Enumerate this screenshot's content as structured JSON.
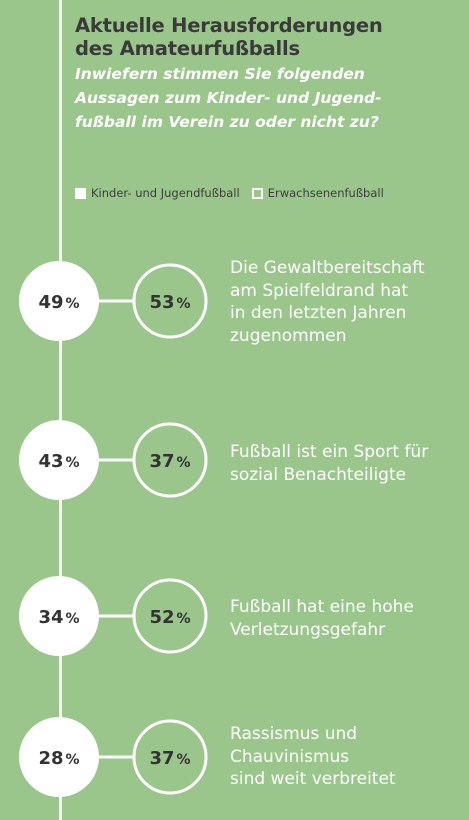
{
  "header": {
    "title_line1": "Aktuelle Herausforderungen",
    "title_line2": "des Amateurfußballs",
    "subtitle_line1": "Inwiefern stimmen Sie folgenden",
    "subtitle_line2": "Aussagen zum Kinder- und Jugend-",
    "subtitle_line3": "fußball im Verein zu oder nicht zu?"
  },
  "colors": {
    "background": "#9ac68c",
    "accent": "#ffffff",
    "text_dark": "#333333"
  },
  "chart_data": {
    "type": "table",
    "unit": "%",
    "series": [
      {
        "name": "Kinder- und Jugendfußball",
        "values": [
          49,
          43,
          34,
          28
        ]
      },
      {
        "name": "Erwachsenenfußball",
        "values": [
          53,
          37,
          52,
          37
        ]
      }
    ],
    "categories": [
      "Die Gewaltbereitschaft\nam Spielfeldrand hat\nin den letzten Jahren\nzugenommen",
      "Fußball ist ein Sport für\nsozial Benachteiligte",
      "Fußball hat eine hohe\nVerletzungsgefahr",
      "Rassismus und\nChauvinismus\nsind  weit verbreitet"
    ]
  }
}
